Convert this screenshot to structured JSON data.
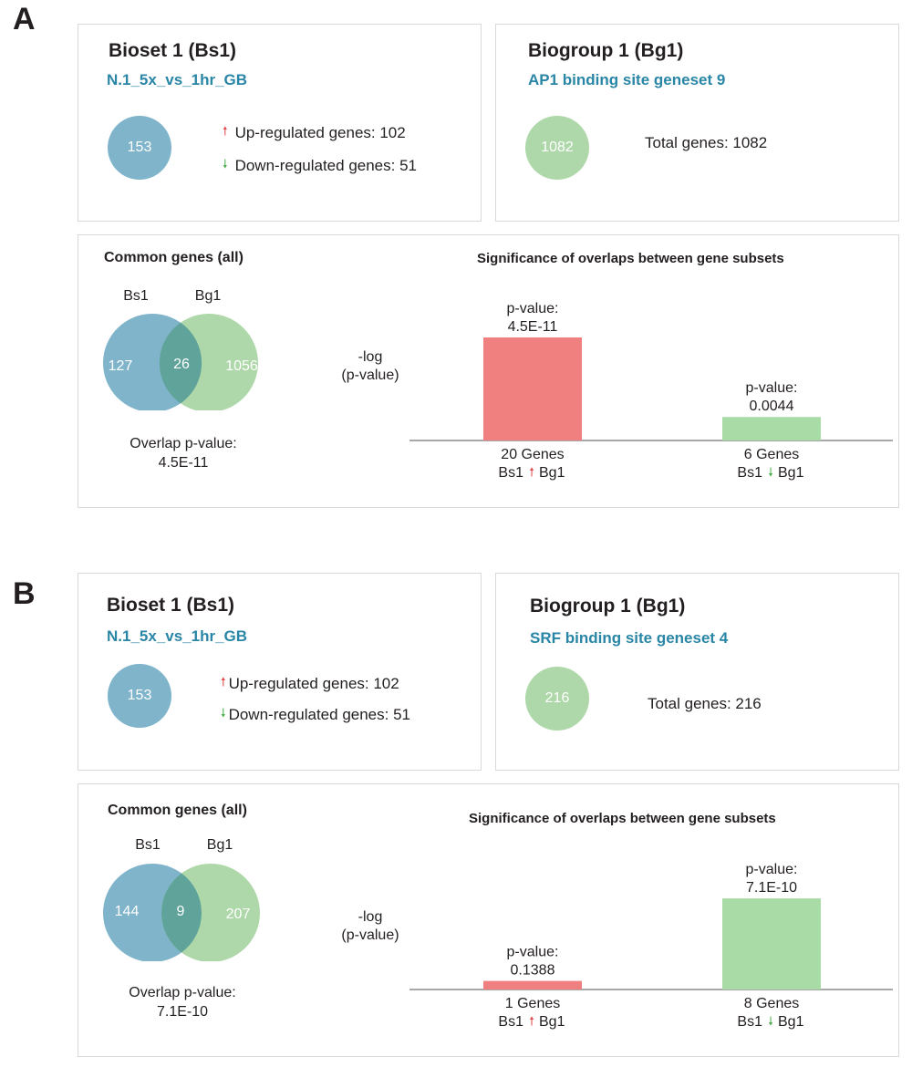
{
  "colors": {
    "bioset_blue": "#7fb4cb",
    "biogroup_green": "#aed8a9",
    "overlap_teal": "#5fa39b",
    "bar_red": "#f07f7f",
    "bar_green": "#a8dba6",
    "up_arrow": "#e34a4a",
    "down_arrow": "#4fae4f",
    "set_name_text": "#2a86a6"
  },
  "panels": [
    {
      "letter": "A",
      "bioset": {
        "title": "Bioset 1 (Bs1)",
        "name": "N.1_5x_vs_1hr_GB",
        "total": "153",
        "up_label": "Up-regulated genes: 102",
        "down_label": "Down-regulated genes: 51"
      },
      "biogroup": {
        "title": "Biogroup 1 (Bg1)",
        "name": "AP1 binding site geneset 9",
        "total": "1082",
        "total_label": "Total genes: 1082"
      },
      "common": {
        "title": "Common genes (all)",
        "left_label": "Bs1",
        "right_label": "Bg1",
        "left_only": "127",
        "overlap": "26",
        "right_only": "1056",
        "pvalue_label": "Overlap p-value:",
        "pvalue": "4.5E-11"
      },
      "significance": {
        "title": "Significance of overlaps between gene subsets",
        "ylabel_line1": "-log",
        "ylabel_line2": "(p-value)"
      }
    },
    {
      "letter": "B",
      "bioset": {
        "title": "Bioset 1 (Bs1)",
        "name": "N.1_5x_vs_1hr_GB",
        "total": "153",
        "up_label": "Up-regulated genes: 102",
        "down_label": "Down-regulated genes: 51"
      },
      "biogroup": {
        "title": "Biogroup 1 (Bg1)",
        "name": "SRF binding site geneset 4",
        "total": "216",
        "total_label": "Total genes: 216"
      },
      "common": {
        "title": "Common genes (all)",
        "left_label": "Bs1",
        "right_label": "Bg1",
        "left_only": "144",
        "overlap": "9",
        "right_only": "207",
        "pvalue_label": "Overlap p-value:",
        "pvalue": "7.1E-10"
      },
      "significance": {
        "title": "Significance of overlaps between gene subsets",
        "ylabel_line1": "-log",
        "ylabel_line2": "(p-value)"
      }
    }
  ],
  "chart_data": [
    {
      "type": "bar",
      "title": "Significance of overlaps between gene subsets",
      "ylabel": "-log (p-value)",
      "series": [
        {
          "values": [
            10.35,
            2.36
          ],
          "pvalues": [
            "4.5E-11",
            "0.0044"
          ],
          "gene_counts": [
            "20 Genes",
            "6 Genes"
          ],
          "directions": [
            "up",
            "down"
          ],
          "colors": [
            "#f07f7f",
            "#a8dba6"
          ]
        }
      ],
      "categories": [
        "Bs1 Bg1 (up)",
        "Bs1 Bg1 (down)"
      ],
      "bar_pvalue_label": "p-value:",
      "cat_left": "Bs1",
      "cat_right": "Bg1",
      "ylim": [
        0,
        10.35
      ]
    },
    {
      "type": "bar",
      "title": "Significance of overlaps between gene subsets",
      "ylabel": "-log (p-value)",
      "series": [
        {
          "values": [
            0.86,
            9.15
          ],
          "pvalues": [
            "0.1388",
            "7.1E-10"
          ],
          "gene_counts": [
            "1 Genes",
            "8 Genes"
          ],
          "directions": [
            "up",
            "down"
          ],
          "colors": [
            "#f07f7f",
            "#a8dba6"
          ]
        }
      ],
      "categories": [
        "Bs1 Bg1 (up)",
        "Bs1 Bg1 (down)"
      ],
      "bar_pvalue_label": "p-value:",
      "cat_left": "Bs1",
      "cat_right": "Bg1",
      "ylim": [
        0,
        10.35
      ]
    }
  ]
}
